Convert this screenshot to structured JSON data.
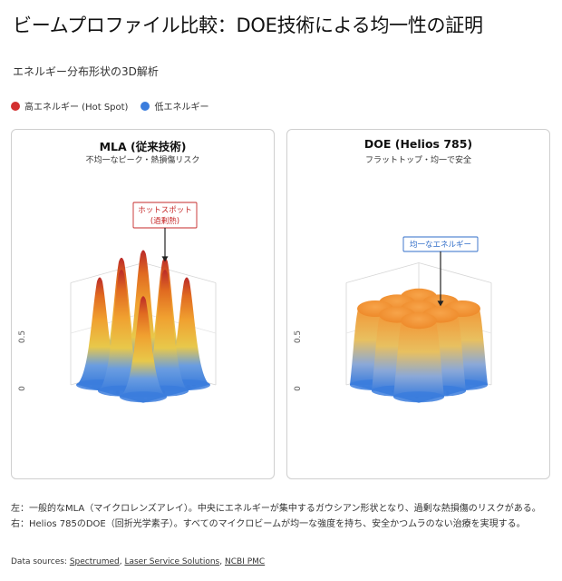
{
  "page": {
    "title": "ビームプロファイル比較：DOE技術による均一性の証明",
    "subtitle": "エネルギー分布形状の3D解析",
    "caption": "左：一般的なMLA（マイクロレンズアレイ）。中央にエネルギーが集中するガウシアン形状となり、過剰な熱損傷のリスクがある。右：Helios 785のDOE（回折光学素子）。すべてのマイクロビームが均一な強度を持ち、安全かつムラのない治療を実現する。",
    "sources_label": "Data sources:",
    "sources": [
      "Spectrumed",
      "Laser Service Solutions",
      "NCBI PMC"
    ]
  },
  "legend": [
    {
      "label": "高エネルギー (Hot Spot)",
      "color": "#d32f2f"
    },
    {
      "label": "低エネルギー",
      "color": "#3b7ddd"
    }
  ],
  "chart_data": [
    {
      "type": "surface",
      "title": "MLA (従来技術)",
      "subtitle": "不均一なピーク・熱損傷リスク",
      "zticks": [
        "0",
        "0.5"
      ],
      "zlim": [
        0,
        1
      ],
      "annotation": "ホットスポット\n(過剰熱)",
      "profile": "gaussian",
      "grid": [
        [
          0.75,
          0.9,
          0.8
        ],
        [
          0.9,
          1.0,
          0.9
        ],
        [
          0.8,
          0.9,
          0.75
        ]
      ]
    },
    {
      "type": "surface",
      "title": "DOE (Helios 785)",
      "subtitle": "フラットトップ・均一で安全",
      "zticks": [
        "0",
        "0.5"
      ],
      "zlim": [
        0,
        1
      ],
      "annotation": "均一なエネルギー",
      "profile": "flat-top",
      "grid": [
        [
          0.6,
          0.6,
          0.6
        ],
        [
          0.6,
          0.6,
          0.6
        ],
        [
          0.6,
          0.6,
          0.6
        ]
      ]
    }
  ]
}
